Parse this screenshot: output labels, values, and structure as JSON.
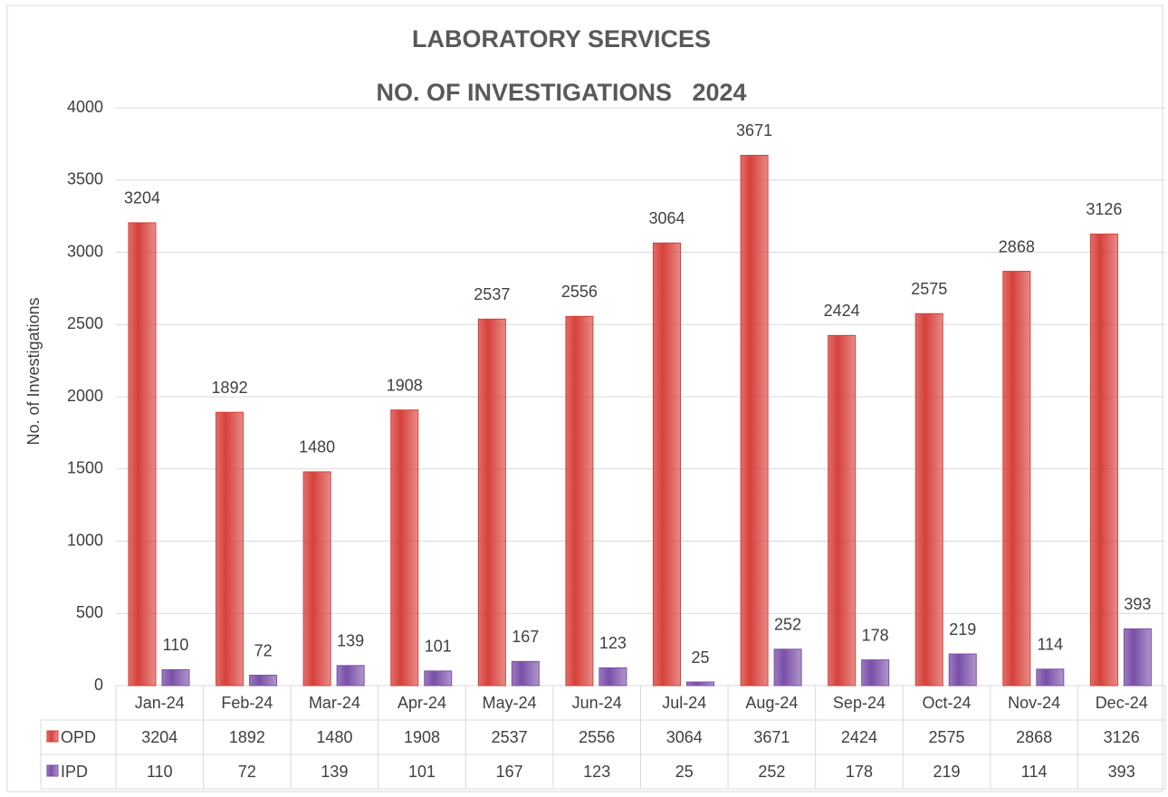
{
  "chart_data": {
    "type": "bar",
    "title": "LABORATORY SERVICES",
    "subtitle": "NO. OF INVESTIGATIONS   2024",
    "y_label": "No. of Investigations",
    "categories": [
      "Jan-24",
      "Feb-24",
      "Mar-24",
      "Apr-24",
      "May-24",
      "Jun-24",
      "Jul-24",
      "Aug-24",
      "Sep-24",
      "Oct-24",
      "Nov-24",
      "Dec-24"
    ],
    "series": [
      {
        "name": "OPD",
        "color": "#d7403a",
        "values": [
          3204,
          1892,
          1480,
          1908,
          2537,
          2556,
          3064,
          3671,
          2424,
          2575,
          2868,
          3126
        ]
      },
      {
        "name": "IPD",
        "color": "#7a4fa8",
        "values": [
          110,
          72,
          139,
          101,
          167,
          123,
          25,
          252,
          178,
          219,
          114,
          393
        ]
      }
    ],
    "ylim": [
      0,
      4000
    ],
    "yticks": [
      0,
      500,
      1000,
      1500,
      2000,
      2500,
      3000,
      3500,
      4000
    ],
    "grid": true,
    "data_table": true
  }
}
